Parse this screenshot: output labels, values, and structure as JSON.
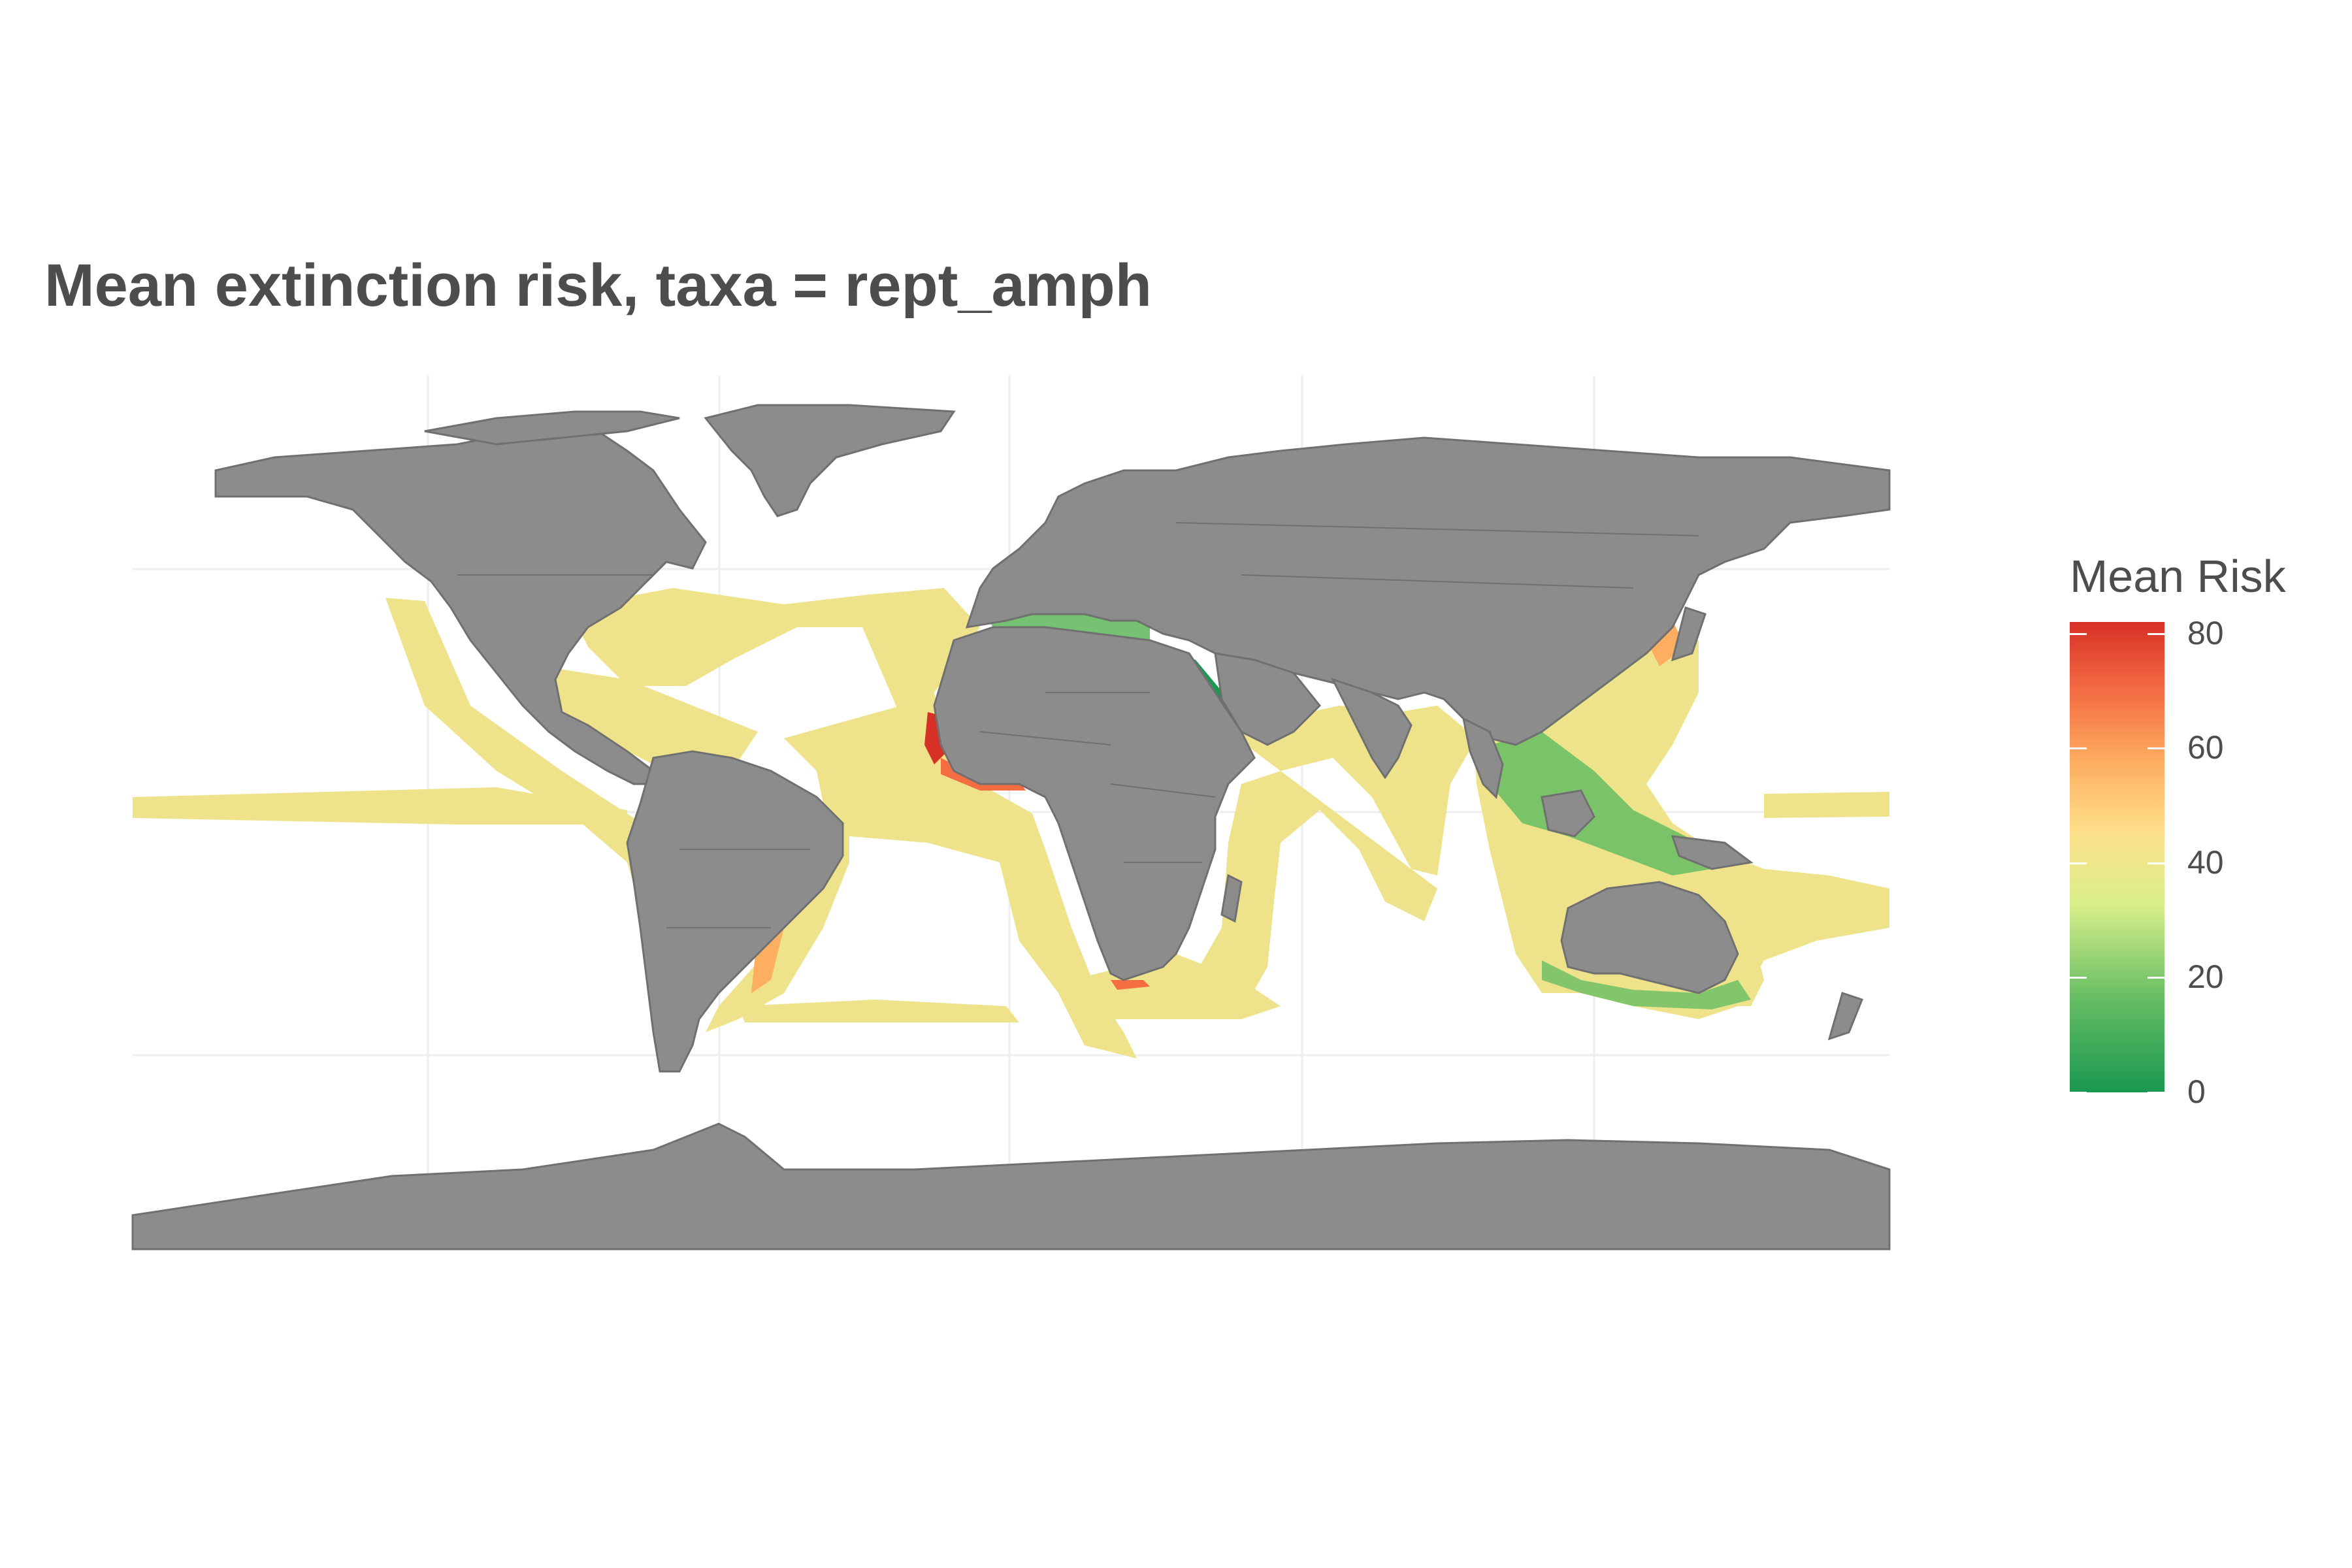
{
  "title": "Mean extinction risk, taxa = rept_amph",
  "legend": {
    "title": "Mean Risk",
    "breaks": [
      0,
      20,
      40,
      60,
      80
    ],
    "range": [
      0,
      82
    ],
    "colors": [
      "#1a9850",
      "#66bd63",
      "#d9ef8b",
      "#fee08b",
      "#fdae61",
      "#f46d43",
      "#d73027"
    ]
  },
  "map": {
    "projection": "equirectangular",
    "land_color": "#8c8c8c",
    "border_color": "#707070",
    "ocean_color": "#ffffff",
    "default_risk_color": "#eee38a",
    "grid": true
  }
}
